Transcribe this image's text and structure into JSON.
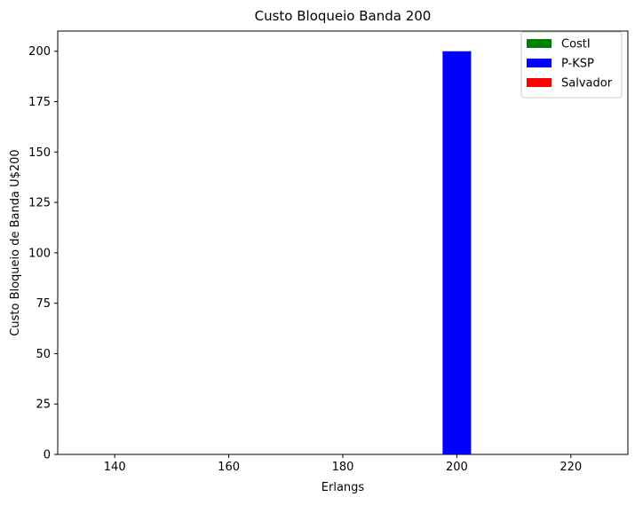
{
  "chart_data": {
    "type": "bar",
    "title": "Custo Bloqueio Banda 200",
    "xlabel": "Erlangs",
    "ylabel": "Custo Bloqueio de Banda U$200",
    "xlim": [
      130,
      230
    ],
    "ylim": [
      0,
      210
    ],
    "xticks": [
      140,
      160,
      180,
      200,
      220
    ],
    "yticks": [
      0,
      25,
      50,
      75,
      100,
      125,
      150,
      175,
      200
    ],
    "bar_width": 5,
    "legend_position": "top-right",
    "grid": false,
    "series": [
      {
        "name": "CostI",
        "color": "#008000",
        "points": []
      },
      {
        "name": "P-KSP",
        "color": "#0000ff",
        "points": [
          {
            "x": 200,
            "y": 200
          }
        ]
      },
      {
        "name": "Salvador",
        "color": "#ff0000",
        "points": []
      }
    ]
  }
}
